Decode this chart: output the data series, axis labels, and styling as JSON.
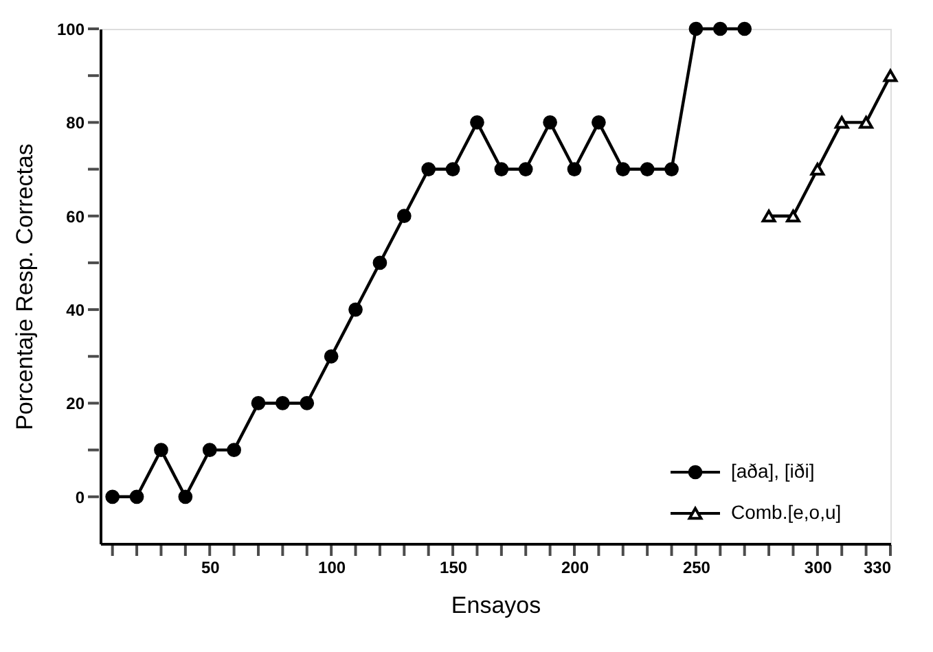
{
  "chart_data": {
    "type": "line",
    "xlabel": "Ensayos",
    "ylabel": "Porcentaje Resp. Correctas",
    "series": [
      {
        "name": "[aða], [iði]",
        "color": "#000000",
        "marker": "circle",
        "x": [
          10,
          20,
          30,
          40,
          50,
          60,
          70,
          80,
          90,
          100,
          110,
          120,
          130,
          140,
          150,
          160,
          170,
          180,
          190,
          200,
          210,
          220,
          230,
          240,
          250,
          260,
          270
        ],
        "values": [
          0,
          0,
          10,
          0,
          10,
          10,
          20,
          20,
          20,
          30,
          40,
          50,
          60,
          70,
          70,
          80,
          70,
          70,
          80,
          70,
          80,
          70,
          70,
          70,
          100,
          100,
          100
        ]
      },
      {
        "name": "Comb.[e,o,u]",
        "color": "#000000",
        "marker": "triangle",
        "x": [
          280,
          290,
          300,
          310,
          320,
          330
        ],
        "values": [
          60,
          60,
          70,
          80,
          80,
          90
        ]
      }
    ],
    "xlim": [
      5,
      330
    ],
    "xticks": [
      {
        "value": 10,
        "label": null
      },
      {
        "value": 20,
        "label": null
      },
      {
        "value": 30,
        "label": null
      },
      {
        "value": 40,
        "label": null
      },
      50,
      {
        "value": 60,
        "label": null
      },
      {
        "value": 70,
        "label": null
      },
      {
        "value": 80,
        "label": null
      },
      {
        "value": 90,
        "label": null
      },
      100,
      {
        "value": 110,
        "label": null
      },
      {
        "value": 120,
        "label": null
      },
      {
        "value": 130,
        "label": null
      },
      {
        "value": 140,
        "label": null
      },
      150,
      {
        "value": 160,
        "label": null
      },
      {
        "value": 170,
        "label": null
      },
      {
        "value": 180,
        "label": null
      },
      {
        "value": 190,
        "label": null
      },
      200,
      {
        "value": 210,
        "label": null
      },
      {
        "value": 220,
        "label": null
      },
      {
        "value": 230,
        "label": null
      },
      {
        "value": 240,
        "label": null
      },
      250,
      {
        "value": 260,
        "label": null
      },
      {
        "value": 270,
        "label": null
      },
      {
        "value": 280,
        "label": null
      },
      {
        "value": 290,
        "label": null
      },
      300,
      {
        "value": 310,
        "label": null
      },
      {
        "value": 320,
        "label": null
      },
      330
    ],
    "ylim": [
      -10,
      100
    ],
    "yticks": [
      0,
      {
        "value": 10,
        "label": null
      },
      20,
      {
        "value": 30,
        "label": null
      },
      40,
      {
        "value": 50,
        "label": null
      },
      60,
      {
        "value": 70,
        "label": null
      },
      80,
      {
        "value": 90,
        "label": null
      },
      100
    ],
    "grid": false,
    "legend": "bottom right",
    "line_style": "solid"
  }
}
